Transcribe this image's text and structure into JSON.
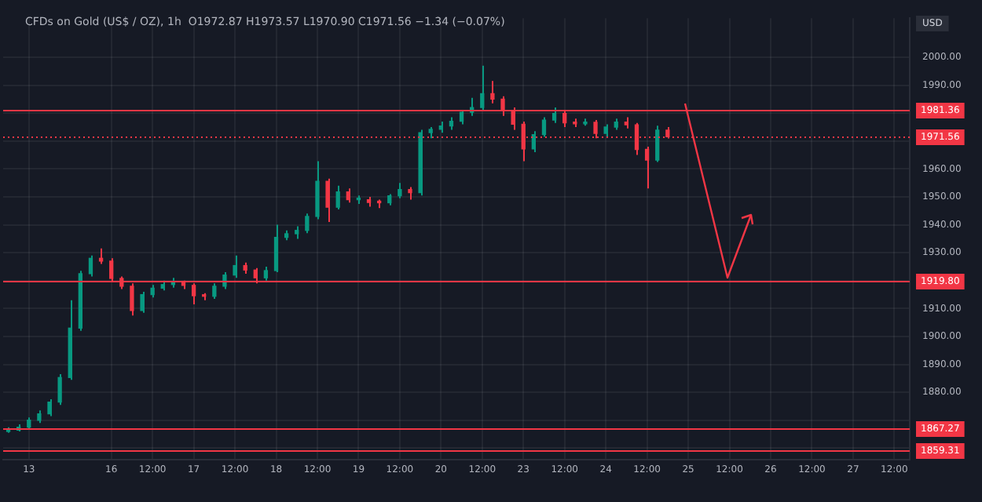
{
  "chart_data": {
    "type": "candlestick",
    "title": "CFDs on Gold (US$ / OZ), 1h  O1972.87 H1973.57 L1970.90 C1971.56 −1.34 (−0.07%)",
    "annotations": [
      "USD"
    ],
    "categories": [
      null,
      null,
      "13",
      null,
      null,
      null,
      null,
      null,
      null,
      null,
      "16",
      null,
      null,
      null,
      "12:00",
      null,
      null,
      null,
      "17",
      null,
      null,
      null,
      "12:00",
      null,
      null,
      null,
      "18",
      null,
      null,
      null,
      "12:00",
      null,
      null,
      null,
      "19",
      null,
      null,
      null,
      "12:00",
      null,
      null,
      null,
      "20",
      null,
      null,
      null,
      "12:00",
      null,
      null,
      null,
      "23",
      null,
      null,
      null,
      "12:00",
      null,
      null,
      null,
      "24",
      null,
      null,
      null,
      "12:00",
      null,
      null,
      null,
      "25",
      null,
      null,
      null,
      "12:00",
      null,
      null,
      null,
      "26",
      null,
      null,
      null,
      "12:00",
      null,
      null,
      null,
      "27",
      null,
      null,
      null,
      "12:00",
      null
    ],
    "ohlc": [
      [
        1866,
        1867.5,
        1865.5,
        1866.5
      ],
      [
        1866.5,
        1868.5,
        1866,
        1867.5
      ],
      [
        1867.5,
        1871,
        1867,
        1870
      ],
      [
        1870,
        1873.5,
        1869,
        1872.3
      ],
      [
        1872.3,
        1877.5,
        1871.5,
        1876.5
      ],
      [
        1876.5,
        1886.5,
        1875.5,
        1885.3
      ],
      [
        1885.3,
        1913,
        1884.5,
        1903
      ],
      [
        1903,
        1923.5,
        1902,
        1922.5
      ],
      [
        1922.5,
        1929,
        1921.5,
        1928
      ],
      [
        1928,
        1931.5,
        1926,
        1927
      ],
      [
        1927,
        1928,
        1919.5,
        1920.8
      ],
      [
        1920.8,
        1921.5,
        1917,
        1918
      ],
      [
        1918,
        1919,
        1907.5,
        1909.3
      ],
      [
        1909.3,
        1916,
        1908.5,
        1915
      ],
      [
        1915,
        1918.5,
        1914,
        1917.3
      ],
      [
        1917.3,
        1920,
        1916.5,
        1918.6
      ],
      [
        1918.6,
        1921,
        1917.5,
        1919.2
      ],
      [
        1919.2,
        1920,
        1917,
        1918.3
      ],
      [
        1918.3,
        1919,
        1911.5,
        1914.6
      ],
      [
        1914.6,
        1915.5,
        1913,
        1914.4
      ],
      [
        1914.4,
        1919,
        1913.5,
        1918
      ],
      [
        1918,
        1923,
        1917,
        1922
      ],
      [
        1922,
        1929,
        1921,
        1925.4
      ],
      [
        1925.4,
        1926.5,
        1922.5,
        1923.8
      ],
      [
        1923.8,
        1924.5,
        1919,
        1921
      ],
      [
        1921,
        1925,
        1920,
        1923.6
      ],
      [
        1923.6,
        1940,
        1923,
        1935.5
      ],
      [
        1935.5,
        1938,
        1934.5,
        1936.8
      ],
      [
        1936.8,
        1939.5,
        1935,
        1938
      ],
      [
        1938,
        1944,
        1937,
        1943
      ],
      [
        1943,
        1962.8,
        1942,
        1955.6
      ],
      [
        1955.6,
        1956.5,
        1941,
        1946.3
      ],
      [
        1946.3,
        1954,
        1945.5,
        1951.8
      ],
      [
        1951.8,
        1953,
        1948,
        1949
      ],
      [
        1949,
        1950.5,
        1947.5,
        1949
      ],
      [
        1949,
        1950,
        1946.5,
        1948
      ],
      [
        1948,
        1949,
        1946,
        1947.9
      ],
      [
        1947.9,
        1951,
        1947,
        1950.4
      ],
      [
        1950.4,
        1955,
        1949.5,
        1952.6
      ],
      [
        1952.6,
        1953.5,
        1949,
        1951.5
      ],
      [
        1951.5,
        1974,
        1950.5,
        1973
      ],
      [
        1973,
        1975,
        1971,
        1974.2
      ],
      [
        1974.2,
        1977,
        1973,
        1975.4
      ],
      [
        1975.4,
        1978.5,
        1974,
        1977.1
      ],
      [
        1977.1,
        1981,
        1976,
        1980.3
      ],
      [
        1980.3,
        1985.5,
        1979,
        1982
      ],
      [
        1982,
        1997,
        1981,
        1987
      ],
      [
        1987,
        1991.5,
        1983.5,
        1985
      ],
      [
        1985,
        1986,
        1979,
        1981
      ],
      [
        1981,
        1982,
        1974,
        1976
      ],
      [
        1976,
        1977,
        1962.8,
        1967.2
      ],
      [
        1967.2,
        1973.5,
        1966,
        1972.3
      ],
      [
        1972.3,
        1978.5,
        1971.5,
        1977.5
      ],
      [
        1977.5,
        1982,
        1976.5,
        1979.9
      ],
      [
        1979.9,
        1981,
        1975,
        1976.5
      ],
      [
        1976.5,
        1978,
        1975,
        1976.2
      ],
      [
        1976.2,
        1978,
        1975.5,
        1976.7
      ],
      [
        1976.7,
        1977.5,
        1971,
        1972.7
      ],
      [
        1972.7,
        1976,
        1971.5,
        1975
      ],
      [
        1975,
        1978,
        1974,
        1976.8
      ],
      [
        1976.8,
        1978.5,
        1974.5,
        1975.8
      ],
      [
        1975.8,
        1976.5,
        1965,
        1967
      ],
      [
        1967,
        1968,
        1953,
        1963.2
      ],
      [
        1963.2,
        1975.5,
        1962.5,
        1973.9
      ],
      [
        1973.9,
        1975,
        1970.9,
        1971.56
      ],
      null,
      null,
      null,
      null,
      null,
      null,
      null,
      null,
      null,
      null,
      null,
      null,
      null,
      null,
      null,
      null,
      null,
      null,
      null,
      null,
      null,
      null,
      null
    ],
    "colors": [
      "#089981",
      "#089981",
      "#089981",
      "#089981",
      "#089981",
      "#089981",
      "#089981",
      "#089981",
      "#089981",
      "#f23645",
      "#f23645",
      "#f23645",
      "#f23645",
      "#089981",
      "#089981",
      "#089981",
      "#089981",
      "#f23645",
      "#f23645",
      "#f23645",
      "#089981",
      "#089981",
      "#089981",
      "#f23645",
      "#f23645",
      "#089981",
      "#089981",
      "#089981",
      "#089981",
      "#089981",
      "#089981",
      "#f23645",
      "#089981",
      "#f23645",
      "#089981",
      "#f23645",
      "#f23645",
      "#089981",
      "#089981",
      "#f23645",
      "#089981",
      "#089981",
      "#089981",
      "#089981",
      "#089981",
      "#089981",
      "#089981",
      "#f23645",
      "#f23645",
      "#f23645",
      "#f23645",
      "#089981",
      "#089981",
      "#089981",
      "#f23645",
      "#f23645",
      "#089981",
      "#f23645",
      "#089981",
      "#089981",
      "#f23645",
      "#f23645",
      "#f23645",
      "#089981",
      "#f23645",
      null,
      null,
      null,
      null,
      null,
      null,
      null,
      null,
      null,
      null,
      null,
      null,
      null,
      null,
      null,
      null,
      null,
      null,
      null,
      null,
      null,
      null,
      null
    ],
    "ylim": [
      1856,
      2014
    ],
    "yticks": [
      {
        "value": 1860,
        "label": null
      },
      {
        "value": 1870,
        "label": null
      },
      {
        "value": 1880,
        "label": "1880.00"
      },
      {
        "value": 1890,
        "label": "1890.00"
      },
      {
        "value": 1900,
        "label": "1900.00"
      },
      {
        "value": 1910,
        "label": "1910.00"
      },
      {
        "value": 1920,
        "label": null
      },
      {
        "value": 1930,
        "label": "1930.00"
      },
      {
        "value": 1940,
        "label": "1940.00"
      },
      {
        "value": 1950,
        "label": "1950.00"
      },
      {
        "value": 1960,
        "label": "1960.00"
      },
      {
        "value": 1970,
        "label": null
      },
      {
        "value": 1980,
        "label": null
      },
      {
        "value": 1990,
        "label": "1990.00"
      },
      {
        "value": 2000,
        "label": "2000.00"
      }
    ],
    "grid": true,
    "ref_lines": [
      {
        "axis": "y",
        "value": 1981.36,
        "label": "1981.36",
        "color": "#f23645"
      },
      {
        "axis": "y",
        "value": 1971.56,
        "label": "1971.56",
        "color": "#f23645",
        "line_style": "dotted"
      },
      {
        "axis": "y",
        "value": 1919.8,
        "label": "1919.80",
        "color": "#f23645"
      },
      {
        "axis": "y",
        "value": 1867.27,
        "label": "1867.27",
        "color": "#f23645"
      },
      {
        "axis": "y",
        "value": 1859.31,
        "label": "1859.31",
        "color": "#f23645"
      }
    ]
  }
}
